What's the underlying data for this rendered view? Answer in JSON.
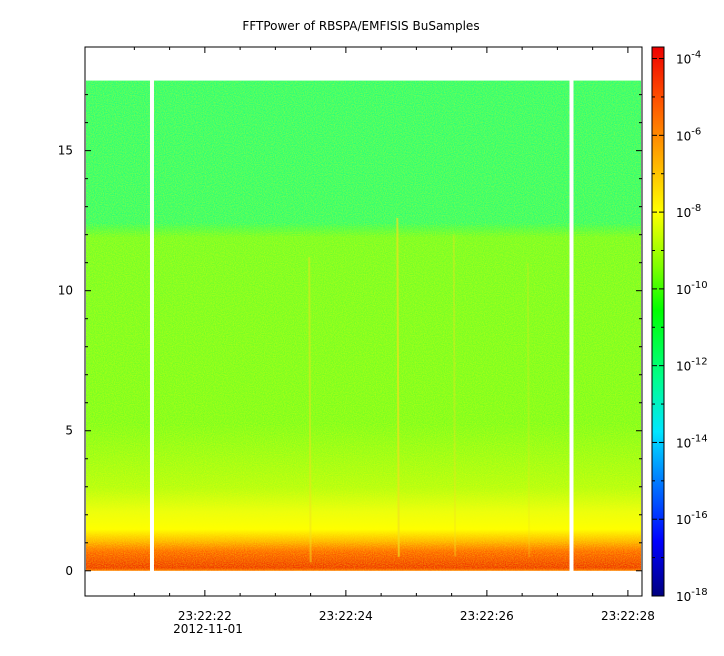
{
  "chart_data": {
    "type": "heatmap",
    "title": "FFTPower of RBSPA/EMFISIS  BuSamples",
    "xlabel": "",
    "ylabel": "",
    "date_label": "2012-11-01",
    "x_ticks": [
      "23:22:22",
      "23:22:24",
      "23:22:26",
      "23:22:28"
    ],
    "x_tick_seconds": [
      22,
      24,
      26,
      28
    ],
    "xlim_seconds": [
      20.3,
      28.2
    ],
    "y_ticks": [
      0,
      5,
      10,
      15
    ],
    "ylim": [
      -0.9,
      18.7
    ],
    "data_ymax": 17.5,
    "gaps_seconds": [
      21.25,
      27.2
    ],
    "colorbar": {
      "scale": "log",
      "range": [
        "1e-18",
        "2e-4"
      ],
      "tick_bases": [
        "10",
        "10",
        "10",
        "10",
        "10",
        "10",
        "10",
        "10"
      ],
      "tick_exponents": [
        "-4",
        "-6",
        "-8",
        "-10",
        "-12",
        "-14",
        "-16",
        "-18"
      ],
      "colormap": [
        "#00007f",
        "#0000ff",
        "#0088ff",
        "#00e6ff",
        "#00ff88",
        "#00ff00",
        "#7fff00",
        "#ffff00",
        "#ffaa00",
        "#ff5500",
        "#ee0000"
      ]
    },
    "bands": [
      {
        "from": 0.0,
        "to": 0.35,
        "level": "-8"
      },
      {
        "from": 0.35,
        "to": 1.0,
        "level": "-6"
      },
      {
        "from": 1.0,
        "to": 1.8,
        "level": "-8"
      },
      {
        "from": 1.8,
        "to": 3.0,
        "level": "-9"
      },
      {
        "from": 3.0,
        "to": 12.2,
        "level": "-10"
      },
      {
        "from": 12.2,
        "to": 17.5,
        "level": "-12"
      }
    ]
  }
}
